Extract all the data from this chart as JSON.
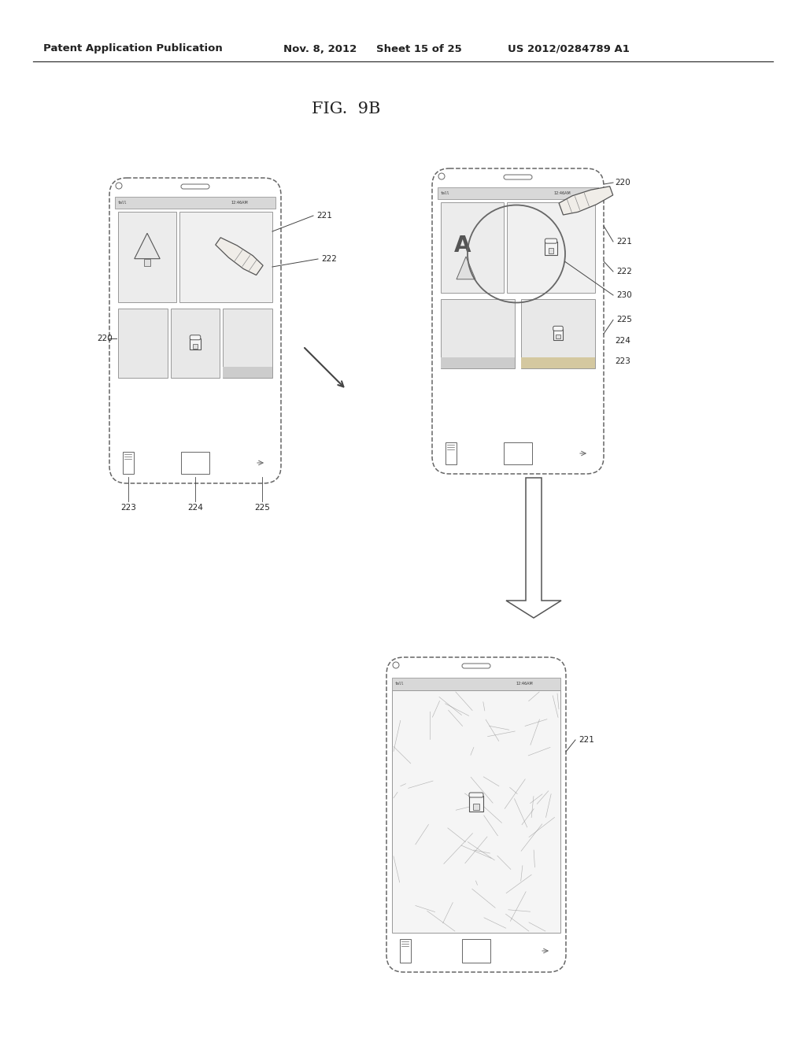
{
  "bg_color": "#ffffff",
  "header_text": "Patent Application Publication",
  "header_date": "Nov. 8, 2012",
  "header_sheet": "Sheet 15 of 25",
  "header_patent": "US 2012/0284789 A1",
  "fig_title": "FIG.  9B",
  "line_color": "#555555",
  "text_color": "#333333",
  "label_fontsize": 7.5,
  "header_fontsize": 9,
  "title_fontsize": 15
}
